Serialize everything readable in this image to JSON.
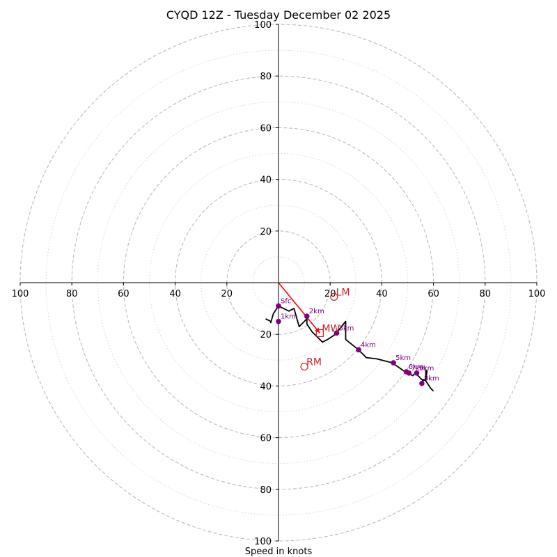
{
  "chart_data": {
    "type": "hodograph",
    "title": "CYQD 12Z - Tuesday December 02 2025",
    "xlabel": "Speed in knots",
    "xlim": [
      -100,
      100
    ],
    "ylim": [
      -100,
      100
    ],
    "axis_tick_labels": {
      "left": [
        "100",
        "80",
        "60",
        "40",
        "20"
      ],
      "right": [
        "20",
        "40",
        "60",
        "80",
        "100"
      ],
      "top": [
        "20",
        "40",
        "60",
        "80",
        "100"
      ],
      "bottom": [
        "20",
        "40",
        "60",
        "80",
        "100"
      ]
    },
    "rings": {
      "dashed": [
        20,
        40,
        60,
        80,
        100
      ],
      "dotted": [
        10,
        30,
        50,
        70,
        90
      ]
    },
    "grid": true,
    "colors": {
      "trace": "#000000",
      "heights": "#800080",
      "motion": "#cc2222",
      "shear_vector": "#ff0000",
      "grid": "#bbbbbb"
    },
    "wind_trace": [
      [
        -5,
        -14
      ],
      [
        -3,
        -15
      ],
      [
        -3,
        -15.5
      ],
      [
        -2,
        -12
      ],
      [
        0,
        -9
      ],
      [
        4,
        -11
      ],
      [
        6,
        -10
      ],
      [
        8,
        -17
      ],
      [
        10,
        -15
      ],
      [
        11,
        -14
      ],
      [
        11,
        -16
      ],
      [
        13,
        -19
      ],
      [
        17,
        -23
      ],
      [
        19,
        -22
      ],
      [
        22,
        -20
      ],
      [
        26,
        -15
      ],
      [
        26,
        -22
      ],
      [
        31,
        -26
      ],
      [
        34,
        -29
      ],
      [
        38,
        -29.5
      ],
      [
        44,
        -31
      ],
      [
        49,
        -34.5
      ],
      [
        52,
        -36
      ],
      [
        53,
        -35
      ],
      [
        56,
        -38
      ],
      [
        56,
        -37.5
      ],
      [
        57,
        -38
      ],
      [
        57,
        -34
      ],
      [
        57.5,
        -34
      ],
      [
        57,
        -38
      ],
      [
        59,
        -41
      ],
      [
        60,
        -42
      ]
    ],
    "height_markers": [
      {
        "label": "Sfc",
        "x": 0,
        "y": -9
      },
      {
        "label": "1km",
        "x": 0,
        "y": -15
      },
      {
        "label": "2km",
        "x": 11,
        "y": -13
      },
      {
        "label": "3km",
        "x": 22.5,
        "y": -19.5
      },
      {
        "label": "4km",
        "x": 31,
        "y": -26
      },
      {
        "label": "5km",
        "x": 44.5,
        "y": -31
      },
      {
        "label": "6km",
        "x": 49.5,
        "y": -34.5
      },
      {
        "label": "7km",
        "x": 50.5,
        "y": -35
      },
      {
        "label": "8km",
        "x": 55.5,
        "y": -39
      },
      {
        "label": "9km",
        "x": 53.5,
        "y": -35
      }
    ],
    "storm_motions": [
      {
        "label": "LM",
        "x": 21.5,
        "y": -5.5,
        "marker": "circle"
      },
      {
        "label": "MW",
        "x": 16,
        "y": -19.5,
        "marker": "square"
      },
      {
        "label": "RM",
        "x": 10,
        "y": -32.5,
        "marker": "circle"
      }
    ],
    "shear_vector": {
      "from": [
        0,
        0
      ],
      "to": [
        16,
        -19.5
      ]
    }
  }
}
